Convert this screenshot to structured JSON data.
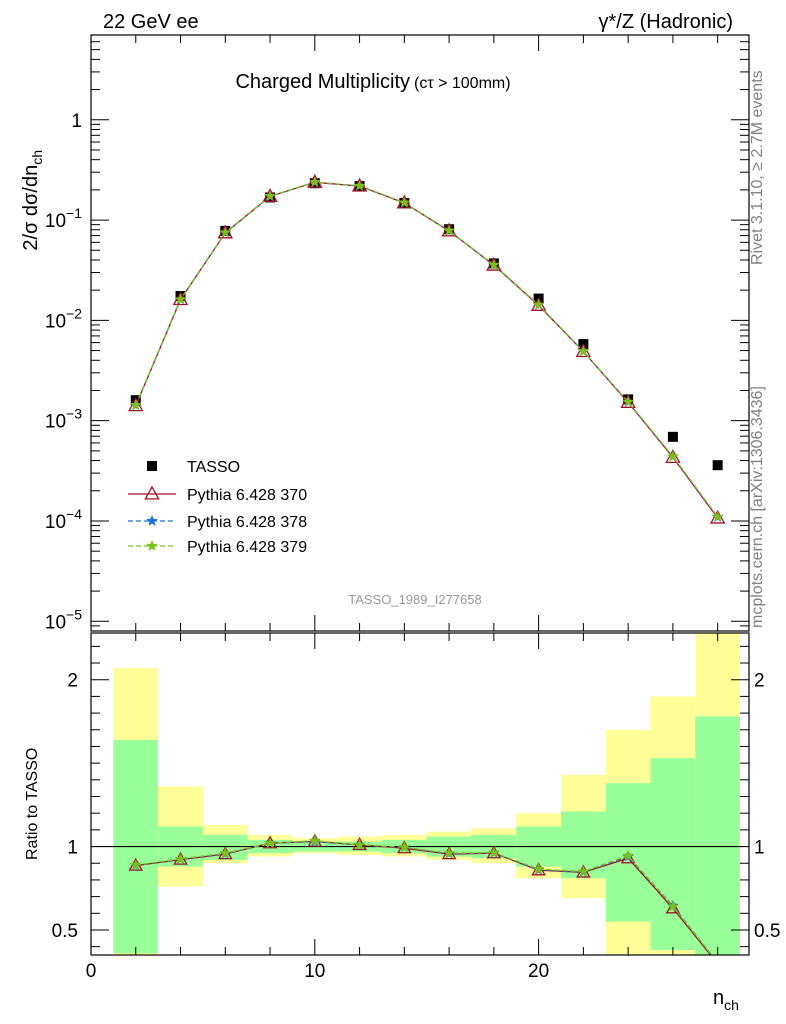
{
  "header": {
    "left": "22 GeV ee",
    "right": "γ*/Z (Hadronic)"
  },
  "side_labels": {
    "rivet": "Rivet 3.1.10, ≥ 2.7M events",
    "mcplots": "mcplots.cern.ch [arXiv:1306.3436]"
  },
  "chart_data": [
    {
      "type": "scatter",
      "panel": "main",
      "title": "Charged Multiplicity",
      "subtitle": "(cτ > 100mm)",
      "watermark": "TASSO_1989_I277658",
      "ylabel": "2/σ dσ/dn_ch",
      "yscale": "log",
      "ylim": [
        8e-06,
        7
      ],
      "xlim": [
        0,
        29.4
      ],
      "y_tick_labels": [
        "10^-5",
        "10^-4",
        "10^-3",
        "10^-2",
        "10^-1",
        "1"
      ],
      "legend_position": "lower-left",
      "x": [
        2,
        4,
        6,
        8,
        10,
        12,
        14,
        16,
        18,
        20,
        22,
        24,
        26,
        28
      ],
      "series": [
        {
          "name": "TASSO",
          "color": "#000000",
          "marker": "square",
          "line": "none",
          "values": [
            0.0016,
            0.0175,
            0.078,
            0.168,
            0.233,
            0.218,
            0.148,
            0.081,
            0.037,
            0.0165,
            0.0058,
            0.00163,
            0.00069,
            0.00036
          ]
        },
        {
          "name": "Pythia 6.428 370",
          "color": "#a0102a",
          "marker": "triangle-open",
          "line": "solid",
          "values": [
            0.00141,
            0.0161,
            0.0745,
            0.172,
            0.238,
            0.218,
            0.148,
            0.0779,
            0.0355,
            0.0141,
            0.00488,
            0.00152,
            0.00043,
            0.000107
          ]
        },
        {
          "name": "Pythia 6.428 378",
          "color": "#1f6fd6",
          "marker": "star",
          "line": "dashed",
          "values": [
            0.00142,
            0.0162,
            0.0748,
            0.172,
            0.238,
            0.219,
            0.149,
            0.0782,
            0.0356,
            0.0142,
            0.0049,
            0.00153,
            0.000438,
            0.000109
          ]
        },
        {
          "name": "Pythia 6.428 379",
          "color": "#7cbf1a",
          "marker": "star",
          "line": "dashed",
          "values": [
            0.00143,
            0.0162,
            0.075,
            0.173,
            0.239,
            0.219,
            0.149,
            0.0784,
            0.0357,
            0.0143,
            0.00492,
            0.00154,
            0.00044,
            0.00011
          ]
        }
      ]
    },
    {
      "type": "line",
      "panel": "ratio",
      "ylabel": "Ratio to TASSO",
      "xlabel": "n_ch",
      "ylim": [
        0.35,
        2.28
      ],
      "xlim": [
        0,
        29.4
      ],
      "x_tick_labels": [
        "0",
        "10",
        "20"
      ],
      "y_tick_labels": [
        "0.5",
        "1",
        "2"
      ],
      "reference_line": 1,
      "bins": [
        [
          1,
          3
        ],
        [
          3,
          5
        ],
        [
          5,
          7
        ],
        [
          7,
          9
        ],
        [
          9,
          11
        ],
        [
          11,
          13
        ],
        [
          13,
          15
        ],
        [
          15,
          17
        ],
        [
          17,
          19
        ],
        [
          19,
          21
        ],
        [
          21,
          23
        ],
        [
          23,
          25
        ],
        [
          25,
          27
        ],
        [
          27,
          29
        ]
      ],
      "band_inner": {
        "color": "#99ff99",
        "lo": [
          0.36,
          0.88,
          0.92,
          0.96,
          0.97,
          0.97,
          0.96,
          0.94,
          0.93,
          0.88,
          0.81,
          0.55,
          0.38,
          0.2
        ],
        "hi": [
          1.64,
          1.12,
          1.07,
          1.04,
          1.03,
          1.03,
          1.04,
          1.06,
          1.07,
          1.12,
          1.21,
          1.38,
          1.53,
          1.78
        ]
      },
      "band_outer": {
        "color": "#ffff99",
        "lo": [
          0.1,
          0.76,
          0.9,
          0.94,
          0.96,
          0.95,
          0.94,
          0.92,
          0.9,
          0.81,
          0.69,
          0.28,
          0.12,
          0.1
        ],
        "hi": [
          2.07,
          1.36,
          1.13,
          1.07,
          1.05,
          1.06,
          1.07,
          1.09,
          1.11,
          1.2,
          1.43,
          1.7,
          1.9,
          2.28
        ]
      },
      "x": [
        2,
        4,
        6,
        8,
        10,
        12,
        14,
        16,
        18,
        20,
        22,
        24,
        26,
        28
      ],
      "series": [
        {
          "name": "Pythia 6.428 370",
          "color": "#a0102a",
          "marker": "triangle-open",
          "line": "solid",
          "values": [
            0.886,
            0.922,
            0.955,
            1.02,
            1.03,
            1.01,
            0.99,
            0.955,
            0.96,
            0.858,
            0.845,
            0.93,
            0.63,
            0.297
          ]
        },
        {
          "name": "Pythia 6.428 378",
          "color": "#1f6fd6",
          "marker": "star",
          "line": "dashed",
          "values": [
            0.887,
            0.925,
            0.957,
            1.02,
            1.03,
            1.01,
            0.995,
            0.957,
            0.962,
            0.86,
            0.848,
            0.94,
            0.645,
            0.303
          ]
        },
        {
          "name": "Pythia 6.428 379",
          "color": "#7cbf1a",
          "marker": "star",
          "line": "dashed",
          "values": [
            0.889,
            0.926,
            0.96,
            1.02,
            1.035,
            1.01,
            0.996,
            0.96,
            0.964,
            0.865,
            0.85,
            0.945,
            0.64,
            0.305
          ]
        }
      ]
    }
  ]
}
